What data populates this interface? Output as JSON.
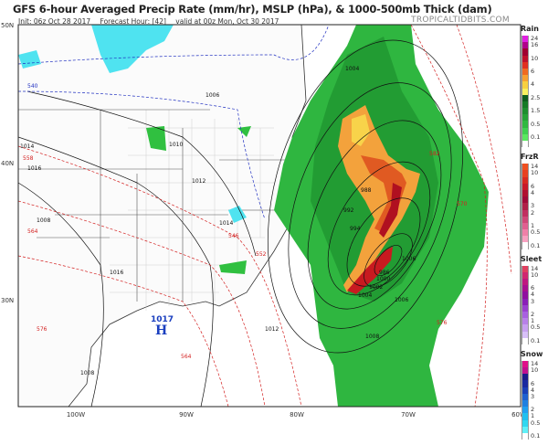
{
  "header": {
    "title": "GFS 6-hour Averaged Precip Rate (mm/hr), MSLP (hPa), & 1000-500mb Thick (dam)",
    "init": "Init: 06z Oct 28 2017",
    "forecast_hour": "Forecast Hour: [42]",
    "valid": "valid at 00z Mon, Oct 30 2017",
    "site": "TROPICALTIDBITS.COM"
  },
  "axes": {
    "lat_labels": [
      "50N",
      "40N",
      "30N"
    ],
    "lon_labels": [
      "100W",
      "90W",
      "80W",
      "70W",
      "60W"
    ]
  },
  "map": {
    "high": {
      "pressure": "1017",
      "letter": "H",
      "color": "#1a3fbf"
    },
    "isobar_labels": [
      "1014",
      "1016",
      "1010",
      "1008",
      "1012",
      "1016",
      "1014",
      "1012",
      "1006",
      "1004",
      "1008",
      "1008",
      "1004",
      "1000",
      "1002",
      "1006",
      "994",
      "992",
      "988",
      "986",
      "1006"
    ],
    "thickness_labels": [
      "540",
      "546",
      "552",
      "558",
      "564",
      "570",
      "576",
      "564",
      "576",
      "582"
    ]
  },
  "legend": {
    "rain": {
      "title": "Rain",
      "colors": [
        "#e020e0",
        "#b0008a",
        "#a00030",
        "#c0102a",
        "#e03020",
        "#f06a20",
        "#f8a030",
        "#f8d040",
        "#f8f060",
        "#0e5c1e",
        "#167a26",
        "#1e8e2e",
        "#26a236",
        "#30b840",
        "#40d050",
        "#5ae860",
        "#ffffff"
      ],
      "labels": [
        "24",
        "16",
        "10",
        "6",
        "4",
        "2.5",
        "1.5",
        "0.5",
        "0.1"
      ]
    },
    "frzr": {
      "title": "FrzR",
      "colors": [
        "#f05020",
        "#e84020",
        "#d82a20",
        "#c81a28",
        "#b01030",
        "#a00a38",
        "#b02048",
        "#c03060",
        "#d04878",
        "#e06090",
        "#f080a8",
        "#f8a0c0",
        "#ffffff"
      ],
      "labels": [
        "14",
        "10",
        "6",
        "4",
        "3",
        "2",
        "1",
        "0.5",
        "0.1"
      ]
    },
    "sleet": {
      "title": "Sleet",
      "colors": [
        "#e04060",
        "#d02870",
        "#c01880",
        "#a81090",
        "#9010a0",
        "#8a20b8",
        "#9a40d0",
        "#a860e0",
        "#b880e8",
        "#c8a0f0",
        "#d8c0f8",
        "#ffffff"
      ],
      "labels": [
        "14",
        "10",
        "6",
        "4",
        "3",
        "2",
        "1",
        "0.5",
        "0.1"
      ]
    },
    "snow": {
      "title": "Snow",
      "colors": [
        "#e0108a",
        "#c01090",
        "#1a1a8a",
        "#1a2aa0",
        "#1a40b8",
        "#2060d0",
        "#2080e0",
        "#20a0f0",
        "#20c0f0",
        "#30d8f0",
        "#60f0f8",
        "#ffffff"
      ],
      "labels": [
        "14",
        "10",
        "6",
        "4",
        "3",
        "2",
        "1",
        "0.5",
        "0.1"
      ]
    }
  }
}
